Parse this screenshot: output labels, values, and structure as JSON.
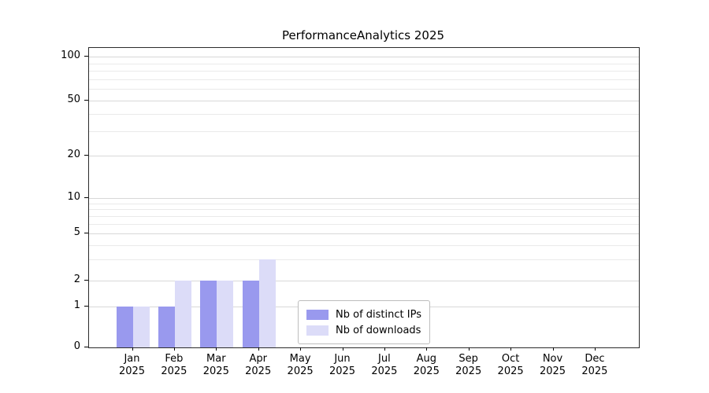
{
  "chart_data": {
    "type": "bar",
    "title": "PerformanceAnalytics 2025",
    "year": "2025",
    "months": [
      "Jan",
      "Feb",
      "Mar",
      "Apr",
      "May",
      "Jun",
      "Jul",
      "Aug",
      "Sep",
      "Oct",
      "Nov",
      "Dec"
    ],
    "series": [
      {
        "name": "Nb of distinct IPs",
        "color": "#9999ee",
        "values": [
          1,
          1,
          2,
          2,
          0,
          0,
          0,
          0,
          0,
          0,
          0,
          0
        ]
      },
      {
        "name": "Nb of downloads",
        "color": "#dcdcf8",
        "values": [
          1,
          2,
          2,
          3,
          0,
          0,
          0,
          0,
          0,
          0,
          0,
          0
        ]
      }
    ],
    "y_axis": {
      "scale": "symlog",
      "ticks": [
        0,
        1,
        2,
        5,
        10,
        20,
        50,
        100
      ],
      "minor_gridlines": [
        3,
        4,
        6,
        7,
        8,
        9,
        30,
        40,
        60,
        70,
        80,
        90
      ],
      "range": [
        0,
        110
      ]
    },
    "x_axis": {
      "label_format": "month over year"
    },
    "grid": "horizontal",
    "legend_position": "lower center",
    "colors": {
      "grid_major": "#d8d8d8",
      "grid_minor": "#eaeaea",
      "axis": "#2b2b2b",
      "background": "#ffffff"
    }
  }
}
